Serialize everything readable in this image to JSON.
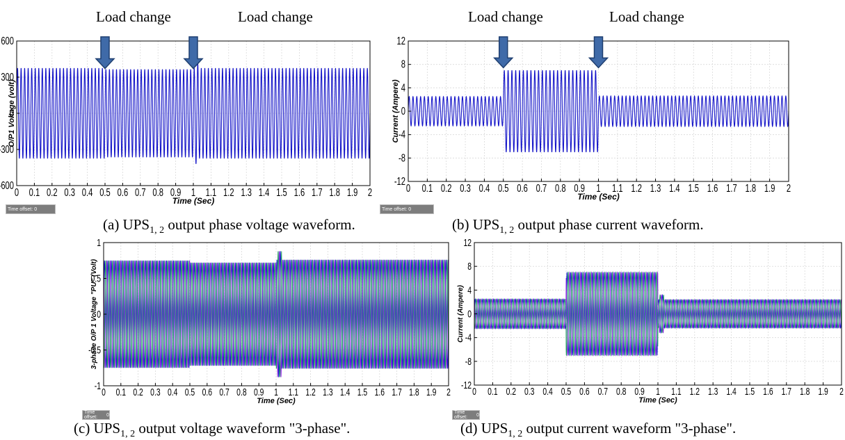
{
  "load_change_label": "Load change",
  "time_offset_label": "Time offset:",
  "time_offset_value": "0",
  "colors": {
    "single_trace": "#1414c8",
    "three_phase": [
      "#1a1ad0",
      "#8a1ee0",
      "#1aa05a"
    ],
    "arrow_fill": "#3f6aa8",
    "arrow_edge": "#1f3f70",
    "grid": "#d9d9d9"
  },
  "chart_data": [
    {
      "id": "a",
      "type": "line",
      "caption": {
        "prefix": "(a) UPS",
        "sub": "1, 2",
        "suffix": " output phase voltage waveform."
      },
      "xlabel": "Time  (Sec)",
      "ylabel": "O/P1 Voltage  (volt)",
      "xlim": [
        0,
        2
      ],
      "ylim": [
        -600,
        600
      ],
      "xticks": [
        0,
        0.1,
        0.2,
        0.3,
        0.4,
        0.5,
        0.6,
        0.7,
        0.8,
        0.9,
        1,
        1.1,
        1.2,
        1.3,
        1.4,
        1.5,
        1.6,
        1.7,
        1.8,
        1.9,
        2
      ],
      "xtick_labels": [
        "0",
        "0.1",
        "0.2",
        "0.3",
        "0.4",
        "0.5",
        "0.6",
        "0.7",
        "0.8",
        "0.9",
        "1",
        "1.1",
        "1.2",
        "1.3",
        "1.4",
        "1.5",
        "1.6",
        "1.7",
        "1.8",
        "1.9",
        "2"
      ],
      "yticks": [
        -600,
        -300,
        0,
        300,
        600
      ],
      "ytick_labels": [
        "-600",
        "-300",
        "0",
        "300",
        "600"
      ],
      "grid": true,
      "frequency_hz": 50,
      "phases": 1,
      "amplitude_segments": [
        {
          "t0": 0,
          "t1": 0.5,
          "amp": 375
        },
        {
          "t0": 0.5,
          "t1": 1.0,
          "amp": 365
        },
        {
          "t0": 1.0,
          "t1": 2.0,
          "amp": 375
        }
      ],
      "transients": [
        {
          "t": 1.02,
          "amp": 420
        }
      ],
      "load_change_times": [
        0.5,
        1.0
      ]
    },
    {
      "id": "b",
      "type": "line",
      "caption": {
        "prefix": "(b) UPS",
        "sub": "1, 2",
        "suffix": " output phase current waveform."
      },
      "xlabel": "Time  (Sec)",
      "ylabel": "Current  (Ampere)",
      "xlim": [
        0,
        2
      ],
      "ylim": [
        -12,
        12
      ],
      "xticks": [
        0,
        0.1,
        0.2,
        0.3,
        0.4,
        0.5,
        0.6,
        0.7,
        0.8,
        0.9,
        1,
        1.1,
        1.2,
        1.3,
        1.4,
        1.5,
        1.6,
        1.7,
        1.8,
        1.9,
        2
      ],
      "xtick_labels": [
        "0",
        "0.1",
        "0.2",
        "0.3",
        "0.4",
        "0.5",
        "0.6",
        "0.7",
        "0.8",
        "0.9",
        "1",
        "1.1",
        "1.2",
        "1.3",
        "1.4",
        "1.5",
        "1.6",
        "1.7",
        "1.8",
        "1.9",
        "2"
      ],
      "yticks": [
        -12,
        -8,
        -4,
        0,
        4,
        8,
        12
      ],
      "ytick_labels": [
        "-12",
        "-8",
        "-4",
        "0",
        "4",
        "8",
        "12"
      ],
      "grid": true,
      "frequency_hz": 50,
      "phases": 1,
      "amplitude_segments": [
        {
          "t0": 0,
          "t1": 0.5,
          "amp": 2.5
        },
        {
          "t0": 0.5,
          "t1": 1.0,
          "amp": 7
        },
        {
          "t0": 1.0,
          "t1": 2.0,
          "amp": 2.6
        }
      ],
      "transients": [],
      "load_change_times": [
        0.5,
        1.0
      ]
    },
    {
      "id": "c",
      "type": "line",
      "caption": {
        "prefix": "(c) UPS",
        "sub": "1, 2",
        "suffix": " output voltage waveform \"3-phase\"."
      },
      "xlabel": "Time (Sec)",
      "ylabel": "3-phase O/P 1 Voltage \"PU\"  (Volt)",
      "xlim": [
        0,
        2
      ],
      "ylim": [
        -1,
        1
      ],
      "xticks": [
        0,
        0.1,
        0.2,
        0.3,
        0.4,
        0.5,
        0.6,
        0.7,
        0.8,
        0.9,
        1,
        1.1,
        1.2,
        1.3,
        1.4,
        1.5,
        1.6,
        1.7,
        1.8,
        1.9,
        2
      ],
      "xtick_labels": [
        "0",
        "0.1",
        "0.2",
        "0.3",
        "0.4",
        "0.5",
        "0.6",
        "0.7",
        "0.8",
        "0.9",
        "1",
        "1.1",
        "1.2",
        "1.3",
        "1.4",
        "1.5",
        "1.6",
        "1.7",
        "1.8",
        "1.9",
        "2"
      ],
      "yticks": [
        -1,
        -0.5,
        0,
        0.5,
        1
      ],
      "ytick_labels": [
        "-1",
        "-0.5",
        "0",
        "0.5",
        "1"
      ],
      "grid": true,
      "frequency_hz": 50,
      "phases": 3,
      "amplitude_segments": [
        {
          "t0": 0,
          "t1": 0.5,
          "amp": 0.75
        },
        {
          "t0": 0.5,
          "t1": 1.0,
          "amp": 0.72
        },
        {
          "t0": 1.0,
          "t1": 2.0,
          "amp": 0.76
        }
      ],
      "transients": [
        {
          "t": 1.02,
          "amp": 0.88
        }
      ],
      "load_change_times": []
    },
    {
      "id": "d",
      "type": "line",
      "caption": {
        "prefix": "(d) UPS",
        "sub": "1, 2",
        "suffix": " output current waveform \"3-phase\"."
      },
      "xlabel": "Time (Sec)",
      "ylabel": "Current  (Ampere)",
      "xlim": [
        0,
        2
      ],
      "ylim": [
        -12,
        12
      ],
      "xticks": [
        0,
        0.1,
        0.2,
        0.3,
        0.4,
        0.5,
        0.6,
        0.7,
        0.8,
        0.9,
        1,
        1.1,
        1.2,
        1.3,
        1.4,
        1.5,
        1.6,
        1.7,
        1.8,
        1.9,
        2
      ],
      "xtick_labels": [
        "0",
        "0.1",
        "0.2",
        "0.3",
        "0.4",
        "0.5",
        "0.6",
        "0.7",
        "0.8",
        "0.9",
        "1",
        "1.1",
        "1.2",
        "1.3",
        "1.4",
        "1.5",
        "1.6",
        "1.7",
        "1.8",
        "1.9",
        "2"
      ],
      "yticks": [
        -12,
        -8,
        -4,
        0,
        4,
        8,
        12
      ],
      "ytick_labels": [
        "-12",
        "-8",
        "-4",
        "0",
        "4",
        "8",
        "12"
      ],
      "grid": true,
      "frequency_hz": 50,
      "phases": 3,
      "amplitude_segments": [
        {
          "t0": 0,
          "t1": 0.5,
          "amp": 2.5
        },
        {
          "t0": 0.5,
          "t1": 1.0,
          "amp": 7
        },
        {
          "t0": 1.0,
          "t1": 2.0,
          "amp": 2.4
        }
      ],
      "transients": [
        {
          "t": 1.02,
          "amp": 3.2
        }
      ],
      "load_change_times": []
    }
  ]
}
